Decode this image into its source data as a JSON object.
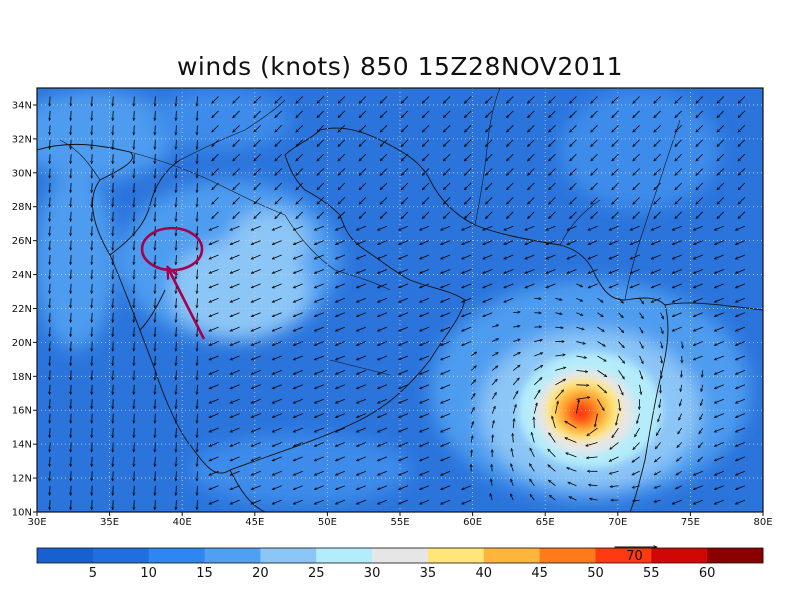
{
  "title": "winds (knots) 850  15Z28NOV2011",
  "map": {
    "lon_range": [
      30,
      80
    ],
    "lat_range": [
      10,
      35
    ],
    "lon_ticks": [
      "30E",
      "35E",
      "40E",
      "45E",
      "50E",
      "55E",
      "60E",
      "65E",
      "70E",
      "75E",
      "80E"
    ],
    "lat_ticks": [
      "10N",
      "12N",
      "14N",
      "16N",
      "18N",
      "20N",
      "22N",
      "24N",
      "26N",
      "28N",
      "30N",
      "32N",
      "34N"
    ],
    "cyclone_center_lonlat": [
      67.5,
      15.8
    ],
    "annotation_circle_lonlat": [
      39.3,
      25.5
    ],
    "annotation_arrow_tail_lonlat": [
      41.5,
      20.2
    ]
  },
  "colorbar": {
    "colors": [
      "#1660d0",
      "#1f6fe0",
      "#2e86f0",
      "#4f9ff2",
      "#8cc6f7",
      "#b4ecfb",
      "#e6e6e6",
      "#ffe677",
      "#ffb43c",
      "#ff7a1a",
      "#ff3a12",
      "#d10606",
      "#8a0000"
    ],
    "labels": [
      "5",
      "10",
      "15",
      "20",
      "25",
      "30",
      "35",
      "40",
      "45",
      "50",
      "55",
      "60"
    ],
    "reference_vector_label": "70"
  },
  "colors": {
    "annotation": "#a3004e",
    "background_field": "#2a74dc"
  }
}
